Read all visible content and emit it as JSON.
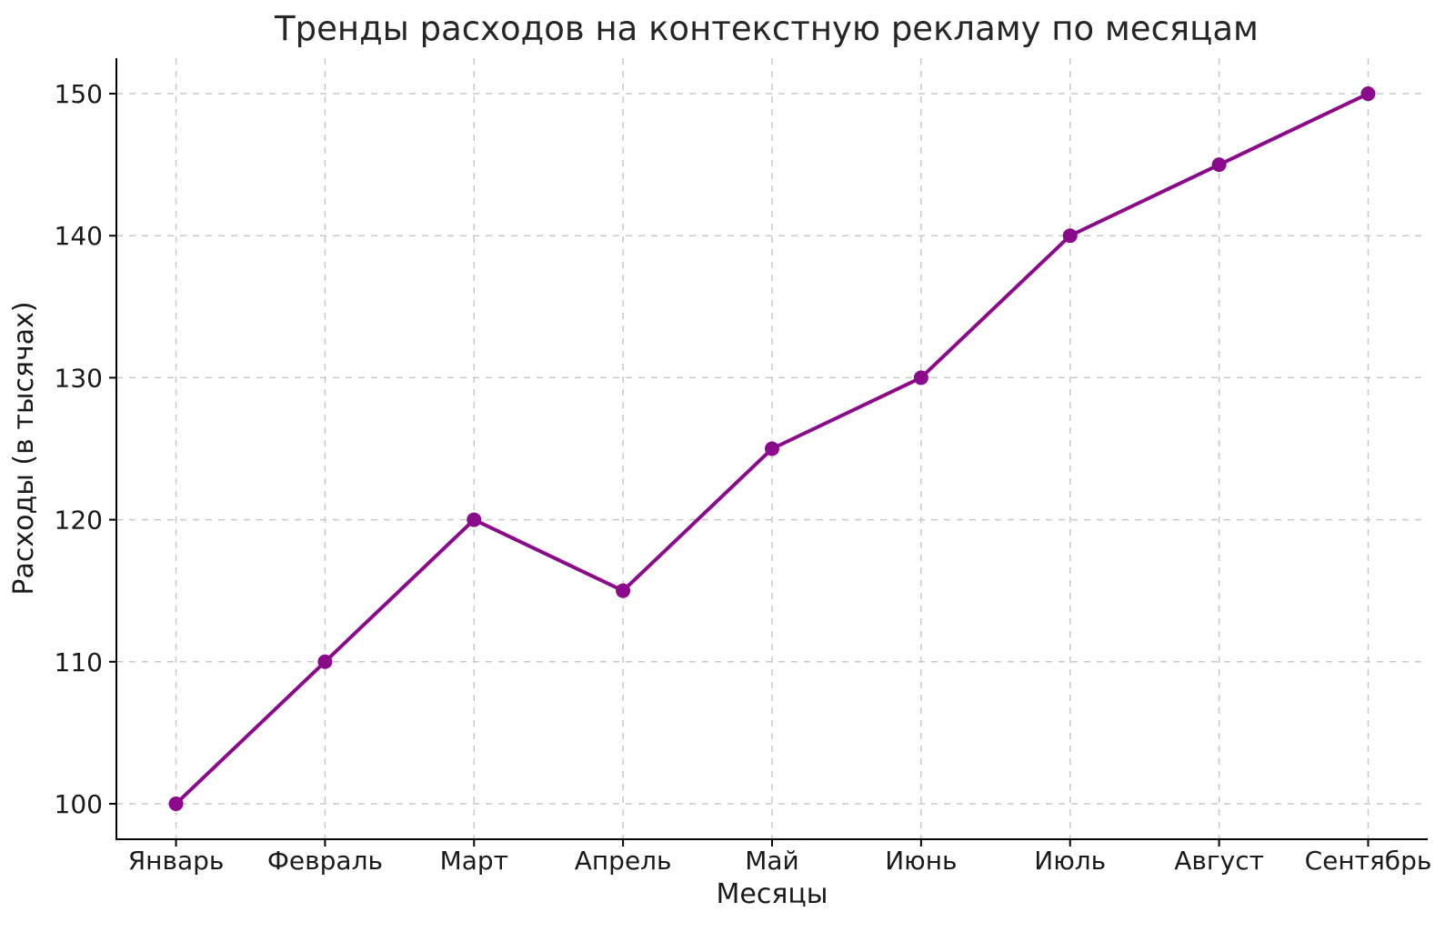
{
  "chart_data": {
    "type": "line",
    "title": "Тренды расходов на контекстную рекламу по месяцам",
    "xlabel": "Месяцы",
    "ylabel": "Расходы (в тысячах)",
    "categories": [
      "Январь",
      "Февраль",
      "Март",
      "Апрель",
      "Май",
      "Июнь",
      "Июль",
      "Август",
      "Сентябрь"
    ],
    "series": [
      {
        "name": "Расходы",
        "values": [
          100,
          110,
          120,
          115,
          125,
          130,
          140,
          145,
          150
        ]
      }
    ],
    "yticks": [
      100,
      110,
      120,
      130,
      140,
      150
    ],
    "ylim": [
      97.5,
      152.5
    ],
    "grid": true,
    "grid_style": "dashed",
    "legend": "none",
    "style": {
      "line_color": "#8B0A8B",
      "marker": "circle",
      "marker_color": "#8B0A8B",
      "grid_color": "#c9c9c9",
      "spine_color": "#000000",
      "text_color": "#1a1a1a",
      "title_color": "#262626",
      "background": "#ffffff"
    }
  }
}
